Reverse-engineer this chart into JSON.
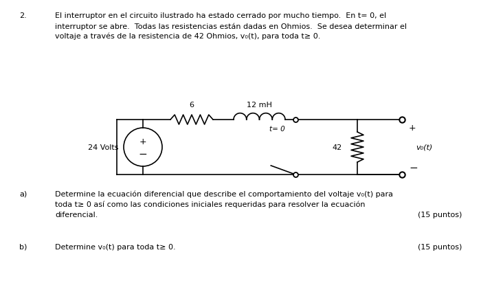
{
  "bg_color": "#ffffff",
  "title_number": "2.",
  "problem_text_line1": "El interruptor en el circuito ilustrado ha estado cerrado por mucho tiempo.  En t= 0, el",
  "problem_text_line2": "interruptor se abre.  Todas las resistencias están dadas en Ohmios.  Se desea determinar el",
  "problem_text_line3": "voltaje a través de la resistencia de 42 Ohmios, v₀(t), para toda t≥ 0.",
  "label_6": "6",
  "label_12mH": "12 mH",
  "label_24V": "24 Volts",
  "label_42": "42",
  "label_vo": "v₀(t)",
  "label_t0": "t= 0",
  "label_plus_src": "+",
  "label_minus_src": "−",
  "label_plus_out": "+",
  "label_minus_out": "−",
  "part_a_label": "a)",
  "part_a_line1": "Determine la ecuación diferencial que describe el comportamiento del voltaje v₀(t) para",
  "part_a_line2": "toda t≥ 0 así como las condiciones iniciales requeridas para resolver la ecuación",
  "part_a_line3": "diferencial.",
  "part_a_points": "(15 puntos)",
  "part_b_label": "b)",
  "part_b_text": "Determine v₀(t) para toda t≥ 0.",
  "part_b_points": "(15 puntos)"
}
